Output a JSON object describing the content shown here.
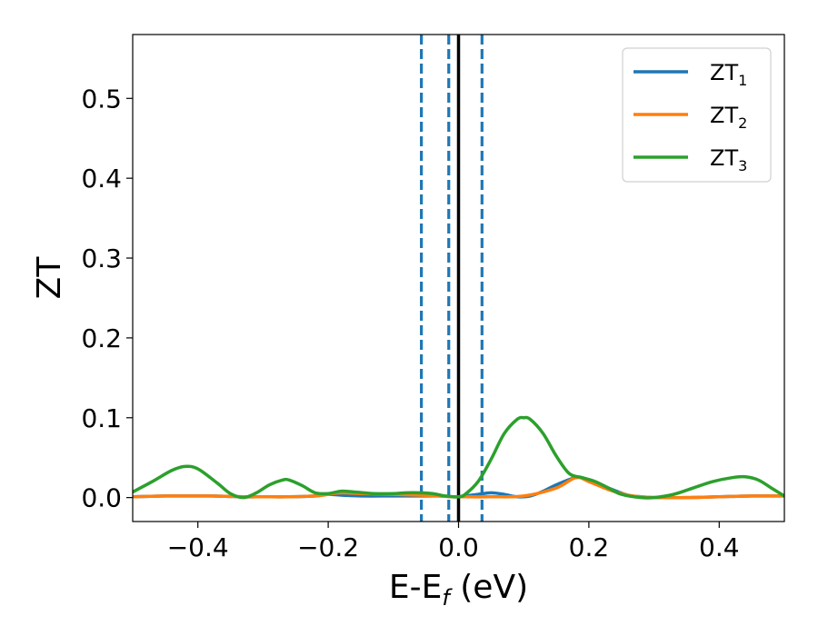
{
  "chart_data": {
    "type": "line",
    "xlabel_main": "E-E",
    "xlabel_sub": "f",
    "xlabel_unit": " (eV)",
    "ylabel": "ZT",
    "xlim": [
      -0.5,
      0.5
    ],
    "ylim": [
      -0.03,
      0.58
    ],
    "x_ticks": [
      -0.4,
      -0.2,
      0.0,
      0.2,
      0.4
    ],
    "x_tick_labels": [
      "−0.4",
      "−0.2",
      "0.0",
      "0.2",
      "0.4"
    ],
    "y_ticks": [
      0.0,
      0.1,
      0.2,
      0.3,
      0.4,
      0.5
    ],
    "y_tick_labels": [
      "0.0",
      "0.1",
      "0.2",
      "0.3",
      "0.4",
      "0.5"
    ],
    "grid": false,
    "legend_position": "top-right",
    "series": [
      {
        "name_main": "ZT",
        "name_sub": "1",
        "color": "#1f77b4",
        "x": [
          -0.5,
          -0.45,
          -0.42,
          -0.38,
          -0.33,
          -0.3,
          -0.26,
          -0.22,
          -0.2,
          -0.18,
          -0.15,
          -0.1,
          -0.06,
          -0.03,
          -0.01,
          0.0,
          0.01,
          0.03,
          0.05,
          0.07,
          0.09,
          0.11,
          0.13,
          0.15,
          0.18,
          0.2,
          0.23,
          0.26,
          0.28,
          0.3,
          0.35,
          0.4,
          0.45,
          0.5
        ],
        "y": [
          0.001,
          0.002,
          0.002,
          0.002,
          0.001,
          0.001,
          0.001,
          0.002,
          0.004,
          0.003,
          0.002,
          0.002,
          0.002,
          0.002,
          0.001,
          0.001,
          0.002,
          0.004,
          0.006,
          0.004,
          0.001,
          0.002,
          0.008,
          0.016,
          0.025,
          0.022,
          0.012,
          0.003,
          0.001,
          0.0,
          0.0,
          0.001,
          0.002,
          0.002
        ]
      },
      {
        "name_main": "ZT",
        "name_sub": "2",
        "color": "#ff7f0e",
        "x": [
          -0.5,
          -0.45,
          -0.42,
          -0.38,
          -0.33,
          -0.3,
          -0.26,
          -0.22,
          -0.2,
          -0.18,
          -0.15,
          -0.1,
          -0.06,
          -0.03,
          -0.01,
          0.0,
          0.05,
          0.1,
          0.15,
          0.18,
          0.2,
          0.23,
          0.26,
          0.28,
          0.3,
          0.35,
          0.4,
          0.45,
          0.5
        ],
        "y": [
          0.001,
          0.002,
          0.002,
          0.002,
          0.001,
          0.001,
          0.001,
          0.002,
          0.004,
          0.006,
          0.005,
          0.004,
          0.003,
          0.002,
          0.001,
          0.001,
          0.001,
          0.002,
          0.012,
          0.025,
          0.02,
          0.01,
          0.003,
          0.001,
          0.0,
          0.0,
          0.001,
          0.002,
          0.002
        ]
      },
      {
        "name_main": "ZT",
        "name_sub": "3",
        "color": "#2ca02c",
        "x": [
          -0.5,
          -0.47,
          -0.44,
          -0.42,
          -0.4,
          -0.37,
          -0.35,
          -0.33,
          -0.31,
          -0.29,
          -0.27,
          -0.26,
          -0.24,
          -0.22,
          -0.2,
          -0.18,
          -0.16,
          -0.13,
          -0.1,
          -0.08,
          -0.06,
          -0.04,
          -0.02,
          0.0,
          0.01,
          0.03,
          0.05,
          0.07,
          0.09,
          0.1,
          0.11,
          0.13,
          0.15,
          0.17,
          0.19,
          0.21,
          0.23,
          0.25,
          0.28,
          0.3,
          0.33,
          0.36,
          0.39,
          0.42,
          0.44,
          0.46,
          0.48,
          0.5
        ],
        "y": [
          0.007,
          0.02,
          0.034,
          0.039,
          0.036,
          0.018,
          0.005,
          0.0,
          0.006,
          0.016,
          0.022,
          0.022,
          0.015,
          0.006,
          0.005,
          0.008,
          0.007,
          0.005,
          0.005,
          0.006,
          0.006,
          0.005,
          0.002,
          0.001,
          0.004,
          0.02,
          0.048,
          0.08,
          0.098,
          0.1,
          0.098,
          0.08,
          0.052,
          0.03,
          0.025,
          0.02,
          0.012,
          0.004,
          0.0,
          0.0,
          0.004,
          0.012,
          0.02,
          0.025,
          0.026,
          0.022,
          0.012,
          0.002
        ]
      }
    ],
    "vertical_lines": [
      {
        "x": -0.057,
        "style": "dashed",
        "color": "#1f77b4"
      },
      {
        "x": -0.015,
        "style": "dashed",
        "color": "#1f77b4"
      },
      {
        "x": 0.0,
        "style": "solid",
        "color": "#000000"
      },
      {
        "x": 0.036,
        "style": "dashed",
        "color": "#1f77b4"
      }
    ]
  }
}
